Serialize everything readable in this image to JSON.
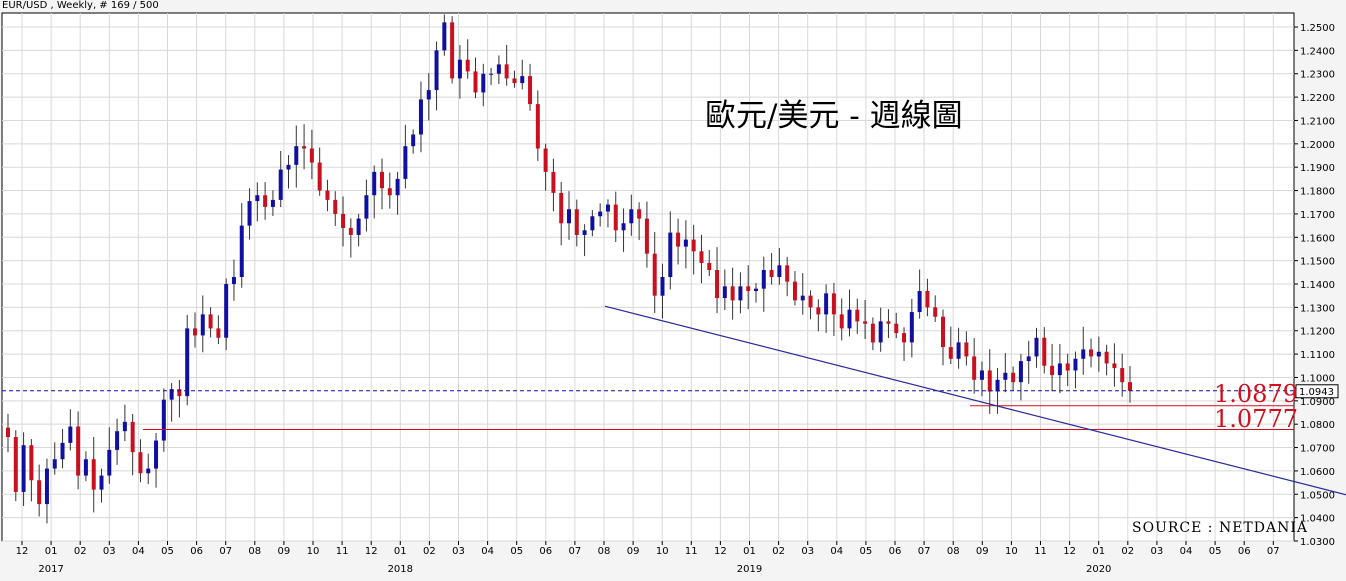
{
  "header": "EUR/USD , Weekly, # 169 / 500",
  "chart_data": {
    "type": "candlestick",
    "title": "歐元/美元 - 週線圖",
    "source": "SOURCE : NETDANIA",
    "ylim": [
      1.03,
      1.256
    ],
    "y_ticks": [
      "1.2500",
      "1.2400",
      "1.2300",
      "1.2200",
      "1.2100",
      "1.2000",
      "1.1900",
      "1.1800",
      "1.1700",
      "1.1600",
      "1.1500",
      "1.1400",
      "1.1300",
      "1.1200",
      "1.1100",
      "1.1000",
      "1.0900",
      "1.0800",
      "1.0700",
      "1.0600",
      "1.0500",
      "1.0400",
      "1.0300"
    ],
    "x_months": [
      "12",
      "01",
      "02",
      "03",
      "04",
      "05",
      "06",
      "07",
      "08",
      "09",
      "10",
      "11",
      "12",
      "01",
      "02",
      "03",
      "04",
      "05",
      "06",
      "07",
      "08",
      "09",
      "10",
      "11",
      "12",
      "01",
      "02",
      "03",
      "04",
      "05",
      "06",
      "07",
      "08",
      "09",
      "10",
      "11",
      "12",
      "01",
      "02",
      "03",
      "04",
      "05",
      "06",
      "07"
    ],
    "x_years": [
      "2017",
      "2018",
      "2019",
      "2020"
    ],
    "current_price_label": "1.0943",
    "current_price": 1.0943,
    "levels": [
      {
        "label": "1.0879",
        "value": 1.0879,
        "color": "#d01020"
      },
      {
        "label": "1.0777",
        "value": 1.0777,
        "color": "#d01020"
      }
    ],
    "trendline": {
      "from": [
        "2018-08",
        1.1305
      ],
      "to": [
        "2020-07",
        1.0575
      ],
      "color": "#2a2a9a"
    },
    "colors": {
      "up": "#1010a0",
      "down": "#c81020",
      "grid": "#d8d8d8"
    },
    "weekly_closes": [
      1.0745,
      1.051,
      1.071,
      1.056,
      1.0458,
      1.061,
      1.065,
      1.072,
      1.079,
      1.058,
      1.065,
      1.052,
      1.058,
      1.069,
      1.077,
      1.081,
      1.068,
      1.059,
      1.061,
      1.073,
      1.0905,
      1.095,
      1.092,
      1.121,
      1.118,
      1.127,
      1.121,
      1.117,
      1.14,
      1.143,
      1.165,
      1.1755,
      1.178,
      1.173,
      1.176,
      1.189,
      1.191,
      1.199,
      1.198,
      1.192,
      1.18,
      1.176,
      1.17,
      1.164,
      1.161,
      1.168,
      1.178,
      1.188,
      1.181,
      1.178,
      1.185,
      1.199,
      1.204,
      1.219,
      1.223,
      1.24,
      1.252,
      1.228,
      1.236,
      1.231,
      1.222,
      1.23,
      1.23,
      1.234,
      1.228,
      1.226,
      1.229,
      1.217,
      1.198,
      1.188,
      1.179,
      1.166,
      1.172,
      1.161,
      1.163,
      1.169,
      1.171,
      1.174,
      1.163,
      1.166,
      1.172,
      1.168,
      1.153,
      1.135,
      1.143,
      1.162,
      1.156,
      1.159,
      1.154,
      1.149,
      1.146,
      1.134,
      1.139,
      1.133,
      1.139,
      1.137,
      1.138,
      1.146,
      1.143,
      1.148,
      1.141,
      1.133,
      1.135,
      1.13,
      1.127,
      1.136,
      1.127,
      1.121,
      1.129,
      1.124,
      1.123,
      1.115,
      1.124,
      1.123,
      1.119,
      1.115,
      1.128,
      1.137,
      1.13,
      1.126,
      1.113,
      1.108,
      1.115,
      1.109,
      1.099,
      1.103,
      1.094,
      1.099,
      1.102,
      1.098,
      1.107,
      1.109,
      1.117,
      1.105,
      1.101,
      1.106,
      1.103,
      1.108,
      1.112,
      1.109,
      1.111,
      1.106,
      1.104,
      1.098,
      1.0943
    ]
  }
}
